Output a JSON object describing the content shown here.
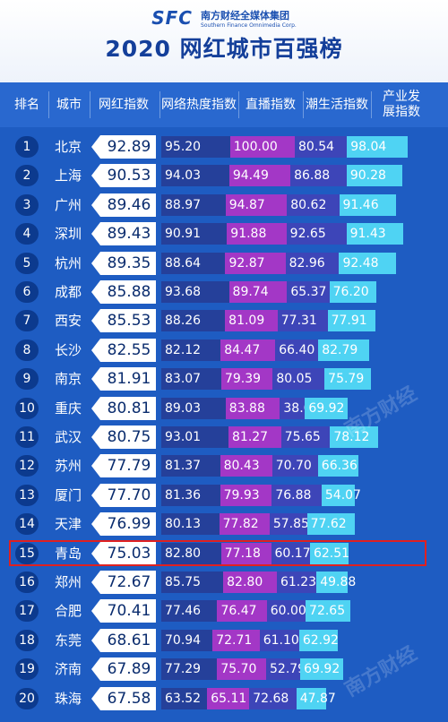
{
  "brand": {
    "logo": "SFC",
    "name_cn": "南方财经全媒体集团",
    "name_en": "Southern Finance Omnimedia Corp."
  },
  "title": "2020 网红城市百强榜",
  "colors": {
    "online": "#25409a",
    "live": "#a337c6",
    "trend": "#3d45b8",
    "industry": "#4fd3f3",
    "rank_badge": "#0c3a8e",
    "highlight": "#e02020"
  },
  "watermark": "南方财经",
  "highlight_rank": "15",
  "chart_data": {
    "type": "table",
    "columns": [
      "排名",
      "城市",
      "网红指数",
      "网络热度指数",
      "直播指数",
      "潮生活指数",
      "产业发展指数"
    ],
    "rows": [
      {
        "rank": "1",
        "city": "北京",
        "score": "92.89",
        "online": "95.20",
        "live": "100.00",
        "trend": "80.54",
        "industry": "98.04"
      },
      {
        "rank": "2",
        "city": "上海",
        "score": "90.53",
        "online": "94.03",
        "live": "94.49",
        "trend": "86.88",
        "industry": "90.28"
      },
      {
        "rank": "3",
        "city": "广州",
        "score": "89.46",
        "online": "88.97",
        "live": "94.87",
        "trend": "80.62",
        "industry": "91.46"
      },
      {
        "rank": "4",
        "city": "深圳",
        "score": "89.43",
        "online": "90.91",
        "live": "91.88",
        "trend": "92.65",
        "industry": "91.43"
      },
      {
        "rank": "5",
        "city": "杭州",
        "score": "89.35",
        "online": "88.64",
        "live": "92.87",
        "trend": "82.96",
        "industry": "92.48"
      },
      {
        "rank": "6",
        "city": "成都",
        "score": "85.88",
        "online": "93.68",
        "live": "89.74",
        "trend": "65.37",
        "industry": "76.20"
      },
      {
        "rank": "7",
        "city": "西安",
        "score": "85.53",
        "online": "88.26",
        "live": "81.09",
        "trend": "77.31",
        "industry": "77.91"
      },
      {
        "rank": "8",
        "city": "长沙",
        "score": "82.55",
        "online": "82.12",
        "live": "84.47",
        "trend": "66.40",
        "industry": "82.79"
      },
      {
        "rank": "9",
        "city": "南京",
        "score": "81.91",
        "online": "83.07",
        "live": "79.39",
        "trend": "80.05",
        "industry": "75.79"
      },
      {
        "rank": "10",
        "city": "重庆",
        "score": "80.81",
        "online": "89.03",
        "live": "83.88",
        "trend": "38.69",
        "industry": "69.92"
      },
      {
        "rank": "11",
        "city": "武汉",
        "score": "80.75",
        "online": "93.01",
        "live": "81.27",
        "trend": "75.65",
        "industry": "78.12"
      },
      {
        "rank": "12",
        "city": "苏州",
        "score": "77.79",
        "online": "81.37",
        "live": "80.43",
        "trend": "70.70",
        "industry": "66.36"
      },
      {
        "rank": "13",
        "city": "厦门",
        "score": "77.70",
        "online": "81.36",
        "live": "79.93",
        "trend": "76.88",
        "industry": "54.07"
      },
      {
        "rank": "14",
        "city": "天津",
        "score": "76.99",
        "online": "80.13",
        "live": "77.82",
        "trend": "57.85",
        "industry": "77.62"
      },
      {
        "rank": "15",
        "city": "青岛",
        "score": "75.03",
        "online": "82.80",
        "live": "77.18",
        "trend": "60.17",
        "industry": "62.51"
      },
      {
        "rank": "16",
        "city": "郑州",
        "score": "72.67",
        "online": "85.75",
        "live": "82.80",
        "trend": "61.23",
        "industry": "49.88"
      },
      {
        "rank": "17",
        "city": "合肥",
        "score": "70.41",
        "online": "77.46",
        "live": "76.47",
        "trend": "60.00",
        "industry": "72.65"
      },
      {
        "rank": "18",
        "city": "东莞",
        "score": "68.61",
        "online": "70.94",
        "live": "72.71",
        "trend": "61.10",
        "industry": "62.92"
      },
      {
        "rank": "19",
        "city": "济南",
        "score": "67.89",
        "online": "77.29",
        "live": "75.70",
        "trend": "52.79",
        "industry": "69.92"
      },
      {
        "rank": "20",
        "city": "珠海",
        "score": "67.58",
        "online": "63.52",
        "live": "65.11",
        "trend": "72.68",
        "industry": "47.87"
      }
    ]
  }
}
